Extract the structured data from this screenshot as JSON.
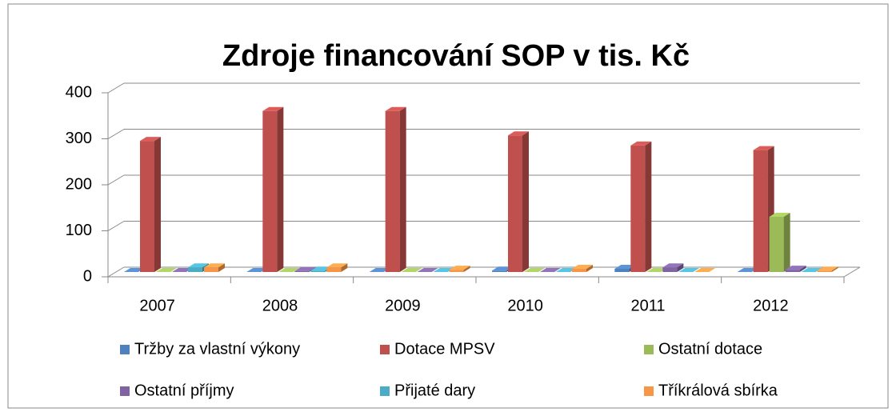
{
  "chart_data": {
    "type": "bar3d",
    "title": "Zdroje financování SOP v tis. Kč",
    "categories": [
      "2007",
      "2008",
      "2009",
      "2010",
      "2011",
      "2012"
    ],
    "series": [
      {
        "name": "Tržby za vlastní výkony",
        "color": "#4f81bd",
        "values": [
          0,
          0,
          0,
          3,
          7,
          0
        ]
      },
      {
        "name": "Dotace MPSV",
        "color": "#c0504d",
        "values": [
          285,
          350,
          350,
          297,
          275,
          265
        ]
      },
      {
        "name": "Ostatní dotace",
        "color": "#9bbb59",
        "values": [
          0,
          0,
          0,
          0,
          0,
          120
        ]
      },
      {
        "name": "Ostatní příjmy",
        "color": "#8064a2",
        "values": [
          0,
          2,
          0,
          0,
          10,
          5
        ]
      },
      {
        "name": "Přijaté dary",
        "color": "#4bacc6",
        "values": [
          10,
          3,
          0,
          0,
          0,
          0
        ]
      },
      {
        "name": "Tříkrálová sbírka",
        "color": "#f79646",
        "values": [
          10,
          10,
          5,
          7,
          0,
          3
        ]
      }
    ],
    "ylim": [
      0,
      400
    ],
    "yticks": [
      0,
      100,
      200,
      300,
      400
    ],
    "grid": true,
    "legend": "bottom"
  }
}
